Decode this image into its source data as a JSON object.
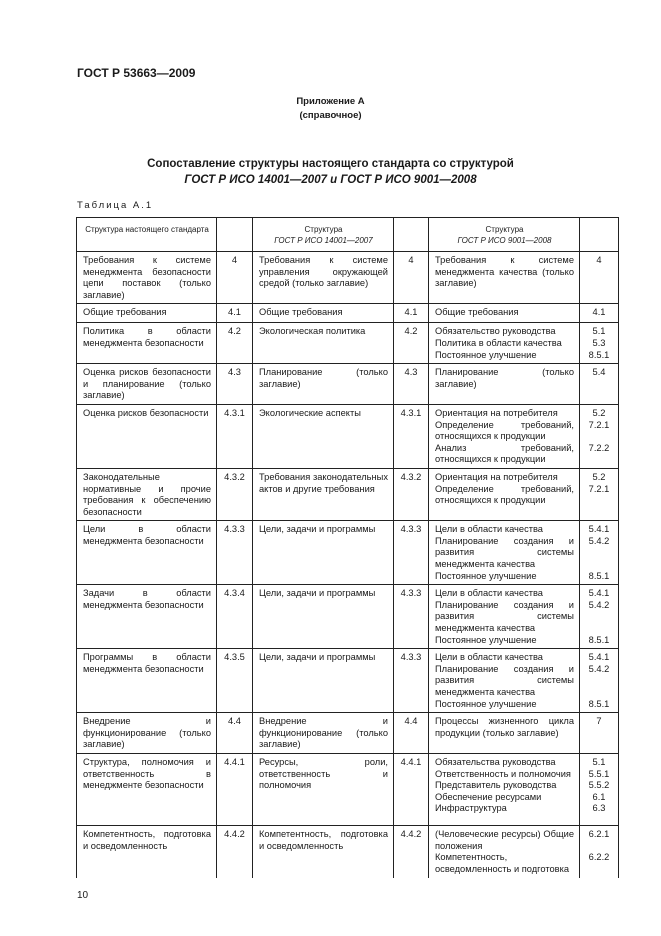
{
  "header": {
    "doc_code": "ГОСТ Р 53663—2009"
  },
  "appendix": {
    "title": "Приложение А",
    "subtitle": "(справочное)"
  },
  "title": {
    "line1": "Сопоставление структуры настоящего стандарта со структурой",
    "line2": "ГОСТ Р ИСО 14001—2007 и ГОСТ Р ИСО 9001—2008"
  },
  "table_label": "Таблица А.1",
  "table": {
    "headers": {
      "c1": "Структура настоящего стандарта",
      "c3_line1": "Структура",
      "c3_line2": "ГОСТ Р ИСО 14001—2007",
      "c5_line1": "Структура",
      "c5_line2": "ГОСТ Р ИСО 9001—2008"
    },
    "rows": [
      {
        "c1": "Требования к системе менеджмента безопасности цепи поставок (только заглавие)",
        "n1": "4",
        "c3": "Требования к системе управления окружающей средой (только заглавие)",
        "n3": "4",
        "items": [
          {
            "t": "Требования к системе менеджмента качества (только заглавие)",
            "n": "4"
          }
        ]
      },
      {
        "c1": "Общие требования",
        "n1": "4.1",
        "c3": "Общие требования",
        "n3": "4.1",
        "items": [
          {
            "t": "Общие требования",
            "n": "4.1"
          }
        ]
      },
      {
        "c1": "Политика в области менеджмента безопасности",
        "n1": "4.2",
        "c3": "Экологическая политика",
        "n3": "4.2",
        "items": [
          {
            "t": "Обязательство руководства",
            "n": "5.1"
          },
          {
            "t": "Политика в области качества",
            "n": "5.3"
          },
          {
            "t": "Постоянное улучшение",
            "n": "8.5.1"
          }
        ]
      },
      {
        "c1": "Оценка рисков безопасности и планирование (только заглавие)",
        "n1": "4.3",
        "c3": "Планирование (только заглавие)",
        "n3": "4.3",
        "items": [
          {
            "t": "Планирование (только заглавие)",
            "n": "5.4"
          }
        ]
      },
      {
        "c1": "Оценка рисков безопасности",
        "n1": "4.3.1",
        "c3": "Экологические аспекты",
        "n3": "4.3.1",
        "items": [
          {
            "t": "Ориентация на потребителя",
            "n": "5.2"
          },
          {
            "t": "Определение требований, относящихся к продукции",
            "n": "7.2.1"
          },
          {
            "t": "Анализ требований, относящихся к продукции",
            "n": "7.2.2"
          }
        ]
      },
      {
        "c1": "Законодательные нормативные и прочие требования к обеспечению безопасности",
        "n1": "4.3.2",
        "c3": "Требования законодательных актов и другие требования",
        "n3": "4.3.2",
        "items": [
          {
            "t": "Ориентация на потребителя",
            "n": "5.2"
          },
          {
            "t": "Определение требований, относящихся к продукции",
            "n": "7.2.1"
          }
        ]
      },
      {
        "c1": "Цели в области менеджмента безопасности",
        "n1": "4.3.3",
        "c3": "Цели, задачи и программы",
        "n3": "4.3.3",
        "items": [
          {
            "t": "Цели в области качества",
            "n": "5.4.1"
          },
          {
            "t": "Планирование создания и развития системы менеджмента качества",
            "n": "5.4.2"
          },
          {
            "t": "Постоянное улучшение",
            "n": "8.5.1"
          }
        ]
      },
      {
        "c1": "Задачи в области менеджмента безопасности",
        "n1": "4.3.4",
        "c3": "Цели, задачи и программы",
        "n3": "4.3.3",
        "items": [
          {
            "t": "Цели в области качества",
            "n": "5.4.1"
          },
          {
            "t": "Планирование создания и развития системы менеджмента качества",
            "n": "5.4.2"
          },
          {
            "t": "Постоянное улучшение",
            "n": "8.5.1"
          }
        ]
      },
      {
        "c1": "Программы в области менеджмента безопасности",
        "n1": "4.3.5",
        "c3": "Цели, задачи и программы",
        "n3": "4.3.3",
        "items": [
          {
            "t": "Цели в области качества",
            "n": "5.4.1"
          },
          {
            "t": "Планирование создания и развития системы менеджмента качества",
            "n": "5.4.2"
          },
          {
            "t": "Постоянное улучшение",
            "n": "8.5.1"
          }
        ]
      },
      {
        "c1": "Внедрение и функционирование (только заглавие)",
        "n1": "4.4",
        "c3": "Внедрение и функционирование (только заглавие)",
        "n3": "4.4",
        "items": [
          {
            "t": "Процессы жизненного цикла продукции (только заглавие)",
            "n": "7"
          }
        ]
      },
      {
        "c1": "Структура, полномочия и ответственность в менеджменте безопасности",
        "n1": "4.4.1",
        "c3": "Ресурсы, роли, ответственность и полномочия",
        "n3": "4.4.1",
        "items": [
          {
            "t": "Обязательства руководства",
            "n": "5.1"
          },
          {
            "t": "Ответственность и полномочия",
            "n": "5.5.1"
          },
          {
            "t": "Представитель руководства",
            "n": "5.5.2"
          },
          {
            "t": "Обеспечение ресурсами",
            "n": "6.1"
          },
          {
            "t": "Инфраструктура",
            "n": "6.3"
          }
        ]
      },
      {
        "c1": "Компетентность, подготовка и осведомленность",
        "n1": "4.4.2",
        "c3": "Компетентность, подготовка и осведомленность",
        "n3": "4.4.2",
        "items": [
          {
            "t": "(Человеческие ресурсы) Общие положения",
            "n": "6.2.1"
          },
          {
            "t": "Компетентность, осведомленность и подготовка",
            "n": "6.2.2"
          }
        ]
      }
    ]
  },
  "page_number": "10"
}
